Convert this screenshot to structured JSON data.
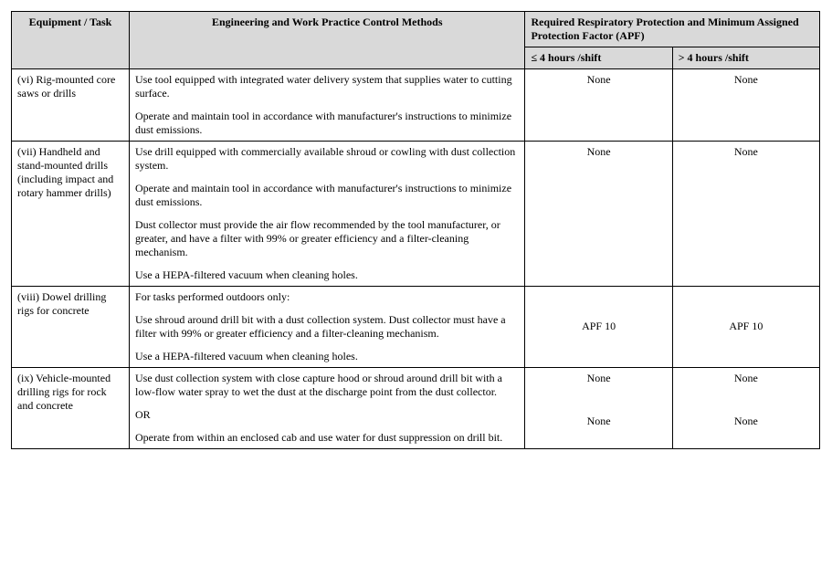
{
  "headers": {
    "equipment": "Equipment / Task",
    "methods": "Engineering and Work Practice Control Methods",
    "apf_group": "Required Respiratory Protection and Minimum Assigned Protection Factor (APF)",
    "apf_le4": "≤ 4 hours /shift",
    "apf_gt4": "> 4 hours /shift"
  },
  "rows": {
    "r0": {
      "equipment": "(vi) Rig-mounted core saws or drills",
      "method_p0": "Use tool equipped with integrated water delivery system that supplies water to cutting surface.",
      "method_p1": "Operate and maintain tool in accordance with manufacturer's instructions to minimize dust emissions.",
      "apf_le4": "None",
      "apf_gt4": "None"
    },
    "r1": {
      "equipment": "(vii) Handheld and stand-mounted drills (including impact and rotary hammer drills)",
      "method_p0": "Use drill equipped with commercially available shroud or cowling with dust collection system.",
      "method_p1": "Operate and maintain tool in accordance with manufacturer's instructions to minimize dust emissions.",
      "method_p2": "Dust collector must provide the air flow recommended by the tool manufacturer, or greater, and have a filter with 99% or greater efficiency and a filter-cleaning mechanism.",
      "method_p3": "Use a HEPA-filtered vacuum when cleaning holes.",
      "apf_le4": "None",
      "apf_gt4": "None"
    },
    "r2": {
      "equipment": "(viii) Dowel drilling rigs for concrete",
      "method_p0": "For tasks performed outdoors only:",
      "method_p1": "Use shroud around drill bit with a dust collection system. Dust collector must have a filter with 99% or greater efficiency and a filter-cleaning mechanism.",
      "method_p2": "Use a HEPA-filtered vacuum when cleaning holes.",
      "apf_le4_blank": "",
      "apf_gt4_blank": "",
      "apf_le4": "APF 10",
      "apf_gt4": "APF 10"
    },
    "r3": {
      "equipment": "(ix) Vehicle-mounted drilling rigs for rock and concrete",
      "method_p0": "Use dust collection system with close capture hood or shroud around drill bit with a low-flow water spray to wet the dust at the discharge point from the dust collector.",
      "method_or": "OR",
      "method_p1": "Operate from within an enclosed cab and use water for dust suppression on drill bit.",
      "apf_le4_a": "None",
      "apf_gt4_a": "None",
      "apf_le4_b": "None",
      "apf_gt4_b": "None"
    }
  }
}
